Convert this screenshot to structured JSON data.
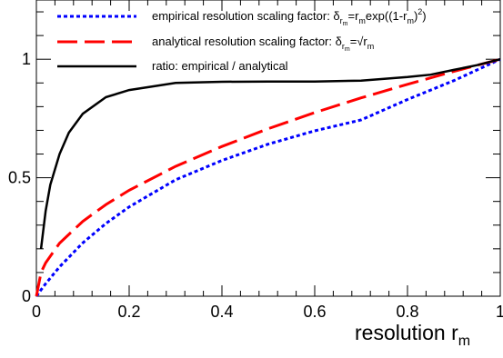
{
  "chart_data": {
    "type": "line",
    "xlabel": "resolution r",
    "xlabel_sub": "m",
    "xlim": [
      0,
      1
    ],
    "ylim": [
      0,
      1.25
    ],
    "x_ticks": [
      "0",
      "0.2",
      "0.4",
      "0.6",
      "0.8",
      "1"
    ],
    "y_ticks": [
      "0",
      "0.5",
      "1"
    ],
    "legend_position": "top",
    "legend": [
      {
        "text": "empirical resolution scaling factor: δ",
        "sub": "r",
        "subsub": "m",
        "formula": "=r",
        "formula_sub": "m",
        "formula_tail": "exp((1-r",
        "formula_tail_sub": "m",
        "formula_close": ")",
        "formula_sup": "2",
        "formula_end": ")"
      },
      {
        "text": "analytical resolution scaling factor: δ",
        "sub": "r",
        "subsub": "m",
        "formula": "=√r",
        "formula_sub": "m"
      },
      {
        "text": "ratio: empirical / analytical"
      }
    ],
    "series": [
      {
        "style": "dotted",
        "color": "#0000ff",
        "x": [
          0,
          0.01,
          0.02,
          0.05,
          0.1,
          0.15,
          0.2,
          0.3,
          0.4,
          0.5,
          0.6,
          0.7,
          0.8,
          0.9,
          1.0
        ],
        "y": [
          0,
          0.027,
          0.053,
          0.124,
          0.225,
          0.307,
          0.377,
          0.491,
          0.573,
          0.642,
          0.698,
          0.744,
          0.83,
          0.91,
          1.0
        ]
      },
      {
        "style": "dashed",
        "color": "#ff0000",
        "x": [
          0,
          0.01,
          0.02,
          0.05,
          0.1,
          0.15,
          0.2,
          0.3,
          0.4,
          0.5,
          0.6,
          0.7,
          0.8,
          0.9,
          1.0
        ],
        "y": [
          0,
          0.1,
          0.141,
          0.224,
          0.316,
          0.387,
          0.447,
          0.548,
          0.632,
          0.707,
          0.775,
          0.837,
          0.894,
          0.949,
          1.0
        ]
      },
      {
        "style": "solid",
        "color": "#000000",
        "x": [
          0.01,
          0.02,
          0.03,
          0.05,
          0.07,
          0.1,
          0.15,
          0.2,
          0.3,
          0.4,
          0.5,
          0.6,
          0.7,
          0.8,
          0.85,
          0.9,
          0.95,
          1.0
        ],
        "y": [
          0.2,
          0.36,
          0.47,
          0.6,
          0.69,
          0.77,
          0.84,
          0.87,
          0.9,
          0.905,
          0.906,
          0.906,
          0.91,
          0.925,
          0.935,
          0.955,
          0.975,
          1.0
        ]
      }
    ]
  }
}
